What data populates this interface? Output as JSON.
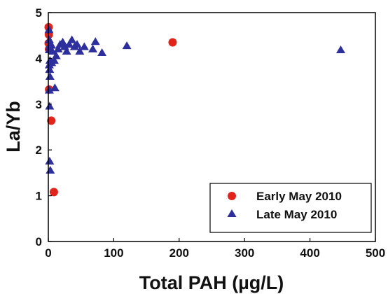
{
  "chart_data": {
    "type": "scatter",
    "xlabel": "Total PAH (µg/L)",
    "ylabel": "La/Yb",
    "xlim": [
      0,
      500
    ],
    "ylim": [
      0,
      5
    ],
    "xticks": [
      "0",
      "100",
      "200",
      "300",
      "400",
      "500"
    ],
    "yticks": [
      "0",
      "1",
      "2",
      "3",
      "4",
      "5"
    ],
    "grid": false,
    "legend_position": "bottom-right",
    "series": [
      {
        "name": "Early May 2010",
        "marker": "circle",
        "color": "#e0241b",
        "points": [
          {
            "x": 0.5,
            "y": 4.68
          },
          {
            "x": 0.8,
            "y": 4.52
          },
          {
            "x": 0.5,
            "y": 4.33
          },
          {
            "x": 1.0,
            "y": 4.2
          },
          {
            "x": 1.2,
            "y": 3.32
          },
          {
            "x": 4.5,
            "y": 2.64
          },
          {
            "x": 8.5,
            "y": 1.08
          },
          {
            "x": 190.0,
            "y": 4.35
          }
        ]
      },
      {
        "name": "Late May 2010",
        "marker": "triangle",
        "color": "#2c2f9c",
        "points": [
          {
            "x": 1.0,
            "y": 4.62
          },
          {
            "x": 1.5,
            "y": 4.4
          },
          {
            "x": 2.0,
            "y": 4.25
          },
          {
            "x": 1.5,
            "y": 4.18
          },
          {
            "x": 3.0,
            "y": 4.3
          },
          {
            "x": 5.0,
            "y": 4.28
          },
          {
            "x": 6.0,
            "y": 4.15
          },
          {
            "x": 2.5,
            "y": 3.95
          },
          {
            "x": 5.0,
            "y": 3.9
          },
          {
            "x": 1.5,
            "y": 3.85
          },
          {
            "x": 9.0,
            "y": 3.95
          },
          {
            "x": 12.0,
            "y": 4.05
          },
          {
            "x": 2.0,
            "y": 3.75
          },
          {
            "x": 2.5,
            "y": 3.6
          },
          {
            "x": 1.5,
            "y": 3.3
          },
          {
            "x": 10.0,
            "y": 3.35
          },
          {
            "x": 2.0,
            "y": 2.95
          },
          {
            "x": 2.0,
            "y": 1.75
          },
          {
            "x": 3.0,
            "y": 1.55
          },
          {
            "x": 15.0,
            "y": 4.2
          },
          {
            "x": 18.0,
            "y": 4.3
          },
          {
            "x": 22.0,
            "y": 4.35
          },
          {
            "x": 25.0,
            "y": 4.25
          },
          {
            "x": 28.0,
            "y": 4.15
          },
          {
            "x": 32.0,
            "y": 4.3
          },
          {
            "x": 36.0,
            "y": 4.4
          },
          {
            "x": 40.0,
            "y": 4.25
          },
          {
            "x": 44.0,
            "y": 4.3
          },
          {
            "x": 48.0,
            "y": 4.15
          },
          {
            "x": 55.0,
            "y": 4.25
          },
          {
            "x": 68.0,
            "y": 4.2
          },
          {
            "x": 72.0,
            "y": 4.36
          },
          {
            "x": 82.0,
            "y": 4.12
          },
          {
            "x": 120.0,
            "y": 4.27
          },
          {
            "x": 447.0,
            "y": 4.18
          }
        ]
      }
    ]
  }
}
